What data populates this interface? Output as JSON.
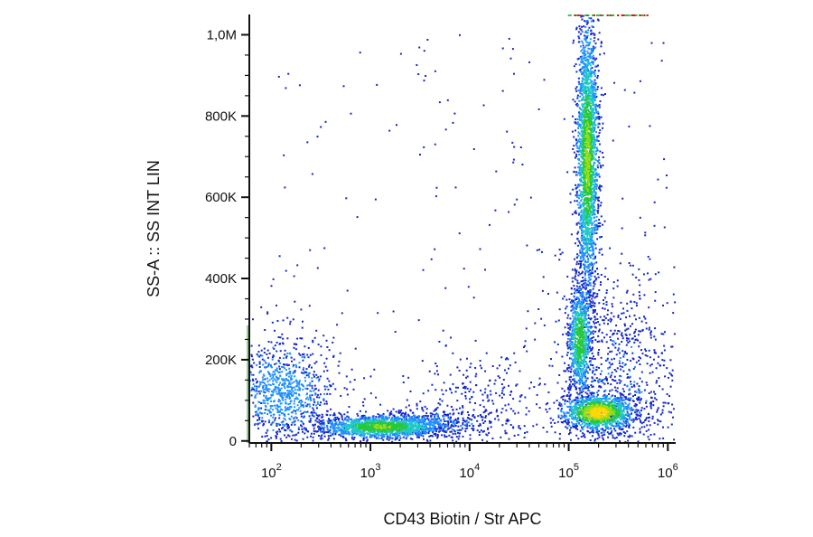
{
  "chart_data": {
    "type": "scatter",
    "title": "",
    "xlabel": "CD43 Biotin / Str APC",
    "ylabel": "SS-A :: SS INT LIN",
    "x_scale": "log",
    "xlim": [
      60,
      1200000
    ],
    "ylim": [
      -5000,
      1050000
    ],
    "x_ticks": [
      {
        "value": 100,
        "base": "10",
        "exp": "2"
      },
      {
        "value": 1000,
        "base": "10",
        "exp": "3"
      },
      {
        "value": 10000,
        "base": "10",
        "exp": "4"
      },
      {
        "value": 100000,
        "base": "10",
        "exp": "5"
      },
      {
        "value": 1000000,
        "base": "10",
        "exp": "6"
      }
    ],
    "y_ticks": [
      {
        "value": 0,
        "label": "0"
      },
      {
        "value": 200000,
        "label": "200K"
      },
      {
        "value": 400000,
        "label": "400K"
      },
      {
        "value": 600000,
        "label": "600K"
      },
      {
        "value": 800000,
        "label": "800K"
      },
      {
        "value": 1000000,
        "label": "1,0M"
      }
    ],
    "grid": false,
    "legend": "none",
    "colormap": [
      "#1428c8",
      "#1e90ff",
      "#22c8c8",
      "#28c83c",
      "#a0dc14",
      "#ffd700",
      "#ff7f00",
      "#e01414"
    ],
    "populations": [
      {
        "cx": 130,
        "cy": 120000,
        "sx_log": 0.28,
        "sy": 70000,
        "n": 950,
        "level": 1.2
      },
      {
        "cx": 1300,
        "cy": 35000,
        "sx_log": 0.32,
        "sy": 14000,
        "n": 1500,
        "level": 3.6
      },
      {
        "cx": 3500,
        "cy": 45000,
        "sx_log": 0.35,
        "sy": 18000,
        "n": 350,
        "level": 1.0
      },
      {
        "cx": 155000,
        "cy": 700000,
        "sx_log": 0.055,
        "sy": 170000,
        "n": 2300,
        "level": 3.8
      },
      {
        "cx": 130000,
        "cy": 250000,
        "sx_log": 0.06,
        "sy": 70000,
        "n": 900,
        "level": 3.3
      },
      {
        "cx": 200000,
        "cy": 70000,
        "sx_log": 0.18,
        "sy": 22000,
        "n": 1200,
        "level": 5.2
      },
      {
        "cx": 320000,
        "cy": 130000,
        "sx_log": 0.35,
        "sy": 140000,
        "n": 1000,
        "level": 0.5
      },
      {
        "cx": 12000,
        "cy": 90000,
        "sx_log": 0.35,
        "sy": 70000,
        "n": 250,
        "level": 0.3
      }
    ]
  }
}
